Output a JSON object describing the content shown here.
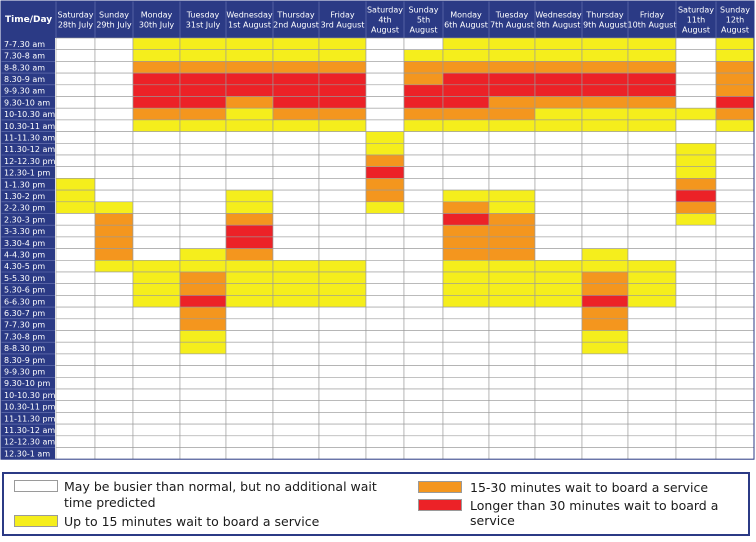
{
  "colors": {
    "header_bg": "#2b3a85",
    "header_text": "#ffffff",
    "grid_line": "#9a9a9a",
    "none": "#ffffff",
    "low": "#f5ee1c",
    "medium": "#f4961e",
    "high": "#ec2227"
  },
  "chart_data": {
    "type": "heatmap",
    "corner_label": "Time/Day",
    "columns": [
      [
        "Saturday",
        "28th July"
      ],
      [
        "Sunday",
        "29th July"
      ],
      [
        "Monday",
        "30th July"
      ],
      [
        "Tuesday",
        "31st July"
      ],
      [
        "Wednesday",
        "1st August"
      ],
      [
        "Thursday",
        "2nd August"
      ],
      [
        "Friday",
        "3rd August"
      ],
      [
        "Saturday",
        "4th",
        "August"
      ],
      [
        "Sunday",
        "5th",
        "August"
      ],
      [
        "Monday",
        "6th August"
      ],
      [
        "Tuesday",
        "7th August"
      ],
      [
        "Wednesday",
        "8th August"
      ],
      [
        "Thursday",
        "9th August"
      ],
      [
        "Friday",
        "10th August"
      ],
      [
        "Saturday",
        "11th",
        "August"
      ],
      [
        "Sunday",
        "12th",
        "August"
      ]
    ],
    "rows": [
      "7-7.30 am",
      "7.30-8 am",
      "8-8.30 am",
      "8.30-9 am",
      "9-9.30 am",
      "9.30-10 am",
      "10-10.30 am",
      "10.30-11 am",
      "11-11.30 am",
      "11.30-12 am",
      "12-12.30 pm",
      "12.30-1 pm",
      "1-1.30 pm",
      "1.30-2 pm",
      "2-2.30 pm",
      "2.30-3 pm",
      "3-3.30 pm",
      "3.30-4 pm",
      "4-4.30 pm",
      "4.30-5 pm",
      "5-5.30 pm",
      "5.30-6 pm",
      "6-6.30 pm",
      "6.30-7 pm",
      "7-7.30 pm",
      "7.30-8 pm",
      "8-8.30 pm",
      "8.30-9 pm",
      "9-9.30 pm",
      "9.30-10 pm",
      "10-10.30 pm",
      "10.30-11 pm",
      "11-11.30 pm",
      "11.30-12 am",
      "12-12.30 am",
      "12.30-1 am"
    ],
    "levels": {
      "0": "May be busier than normal, but no additional wait time predicted",
      "1": "Up to 15 minutes wait to board a service",
      "2": "15-30 minutes wait to board a service",
      "3": "Longer than 30 minutes wait to board a service"
    },
    "values": [
      [
        0,
        0,
        1,
        1,
        1,
        1,
        1,
        0,
        0,
        1,
        1,
        1,
        1,
        1,
        0,
        1
      ],
      [
        0,
        0,
        1,
        1,
        1,
        1,
        1,
        0,
        1,
        1,
        1,
        1,
        1,
        1,
        0,
        1
      ],
      [
        0,
        0,
        2,
        2,
        2,
        2,
        2,
        0,
        2,
        2,
        2,
        2,
        2,
        2,
        0,
        2
      ],
      [
        0,
        0,
        3,
        3,
        3,
        3,
        3,
        0,
        2,
        3,
        3,
        3,
        3,
        3,
        0,
        2
      ],
      [
        0,
        0,
        3,
        3,
        3,
        3,
        3,
        0,
        3,
        3,
        3,
        3,
        3,
        3,
        0,
        2
      ],
      [
        0,
        0,
        3,
        3,
        2,
        3,
        3,
        0,
        3,
        3,
        2,
        2,
        2,
        2,
        0,
        3
      ],
      [
        0,
        0,
        2,
        2,
        1,
        2,
        2,
        0,
        2,
        2,
        2,
        1,
        1,
        1,
        1,
        2
      ],
      [
        0,
        0,
        1,
        1,
        1,
        1,
        1,
        0,
        1,
        1,
        1,
        1,
        1,
        1,
        0,
        1
      ],
      [
        0,
        0,
        0,
        0,
        0,
        0,
        0,
        1,
        0,
        0,
        0,
        0,
        0,
        0,
        0,
        0
      ],
      [
        0,
        0,
        0,
        0,
        0,
        0,
        0,
        1,
        0,
        0,
        0,
        0,
        0,
        0,
        1,
        0
      ],
      [
        0,
        0,
        0,
        0,
        0,
        0,
        0,
        2,
        0,
        0,
        0,
        0,
        0,
        0,
        1,
        0
      ],
      [
        0,
        0,
        0,
        0,
        0,
        0,
        0,
        3,
        0,
        0,
        0,
        0,
        0,
        0,
        1,
        0
      ],
      [
        1,
        0,
        0,
        0,
        0,
        0,
        0,
        2,
        0,
        0,
        0,
        0,
        0,
        0,
        2,
        0
      ],
      [
        1,
        0,
        0,
        0,
        1,
        0,
        0,
        2,
        0,
        1,
        1,
        0,
        0,
        0,
        3,
        0
      ],
      [
        1,
        1,
        0,
        0,
        1,
        0,
        0,
        1,
        0,
        2,
        1,
        0,
        0,
        0,
        2,
        0
      ],
      [
        0,
        2,
        0,
        0,
        2,
        0,
        0,
        0,
        0,
        3,
        2,
        0,
        0,
        0,
        1,
        0
      ],
      [
        0,
        2,
        0,
        0,
        3,
        0,
        0,
        0,
        0,
        2,
        2,
        0,
        0,
        0,
        0,
        0
      ],
      [
        0,
        2,
        0,
        0,
        3,
        0,
        0,
        0,
        0,
        2,
        2,
        0,
        0,
        0,
        0,
        0
      ],
      [
        0,
        2,
        0,
        1,
        2,
        0,
        0,
        0,
        0,
        2,
        2,
        0,
        1,
        0,
        0,
        0
      ],
      [
        0,
        1,
        1,
        1,
        1,
        1,
        1,
        0,
        0,
        1,
        1,
        1,
        1,
        1,
        0,
        0
      ],
      [
        0,
        0,
        1,
        2,
        1,
        1,
        1,
        0,
        0,
        1,
        1,
        1,
        2,
        1,
        0,
        0
      ],
      [
        0,
        0,
        1,
        2,
        1,
        1,
        1,
        0,
        0,
        1,
        1,
        1,
        2,
        1,
        0,
        0
      ],
      [
        0,
        0,
        1,
        3,
        1,
        1,
        1,
        0,
        0,
        1,
        1,
        1,
        3,
        1,
        0,
        0
      ],
      [
        0,
        0,
        0,
        2,
        0,
        0,
        0,
        0,
        0,
        0,
        0,
        0,
        2,
        0,
        0,
        0
      ],
      [
        0,
        0,
        0,
        2,
        0,
        0,
        0,
        0,
        0,
        0,
        0,
        0,
        2,
        0,
        0,
        0
      ],
      [
        0,
        0,
        0,
        1,
        0,
        0,
        0,
        0,
        0,
        0,
        0,
        0,
        1,
        0,
        0,
        0
      ],
      [
        0,
        0,
        0,
        1,
        0,
        0,
        0,
        0,
        0,
        0,
        0,
        0,
        1,
        0,
        0,
        0
      ],
      [
        0,
        0,
        0,
        0,
        0,
        0,
        0,
        0,
        0,
        0,
        0,
        0,
        0,
        0,
        0,
        0
      ],
      [
        0,
        0,
        0,
        0,
        0,
        0,
        0,
        0,
        0,
        0,
        0,
        0,
        0,
        0,
        0,
        0
      ],
      [
        0,
        0,
        0,
        0,
        0,
        0,
        0,
        0,
        0,
        0,
        0,
        0,
        0,
        0,
        0,
        0
      ],
      [
        0,
        0,
        0,
        0,
        0,
        0,
        0,
        0,
        0,
        0,
        0,
        0,
        0,
        0,
        0,
        0
      ],
      [
        0,
        0,
        0,
        0,
        0,
        0,
        0,
        0,
        0,
        0,
        0,
        0,
        0,
        0,
        0,
        0
      ],
      [
        0,
        0,
        0,
        0,
        0,
        0,
        0,
        0,
        0,
        0,
        0,
        0,
        0,
        0,
        0,
        0
      ],
      [
        0,
        0,
        0,
        0,
        0,
        0,
        0,
        0,
        0,
        0,
        0,
        0,
        0,
        0,
        0,
        0
      ],
      [
        0,
        0,
        0,
        0,
        0,
        0,
        0,
        0,
        0,
        0,
        0,
        0,
        0,
        0,
        0,
        0
      ],
      [
        0,
        0,
        0,
        0,
        0,
        0,
        0,
        0,
        0,
        0,
        0,
        0,
        0,
        0,
        0,
        0
      ]
    ]
  },
  "legend": {
    "none_line1": "May be busier than normal, but no additional wait",
    "none_line2": "time predicted",
    "low": "Up to 15 minutes wait to board a service",
    "medium": "15-30 minutes wait to board a service",
    "high": "Longer than 30 minutes wait to board a service"
  }
}
